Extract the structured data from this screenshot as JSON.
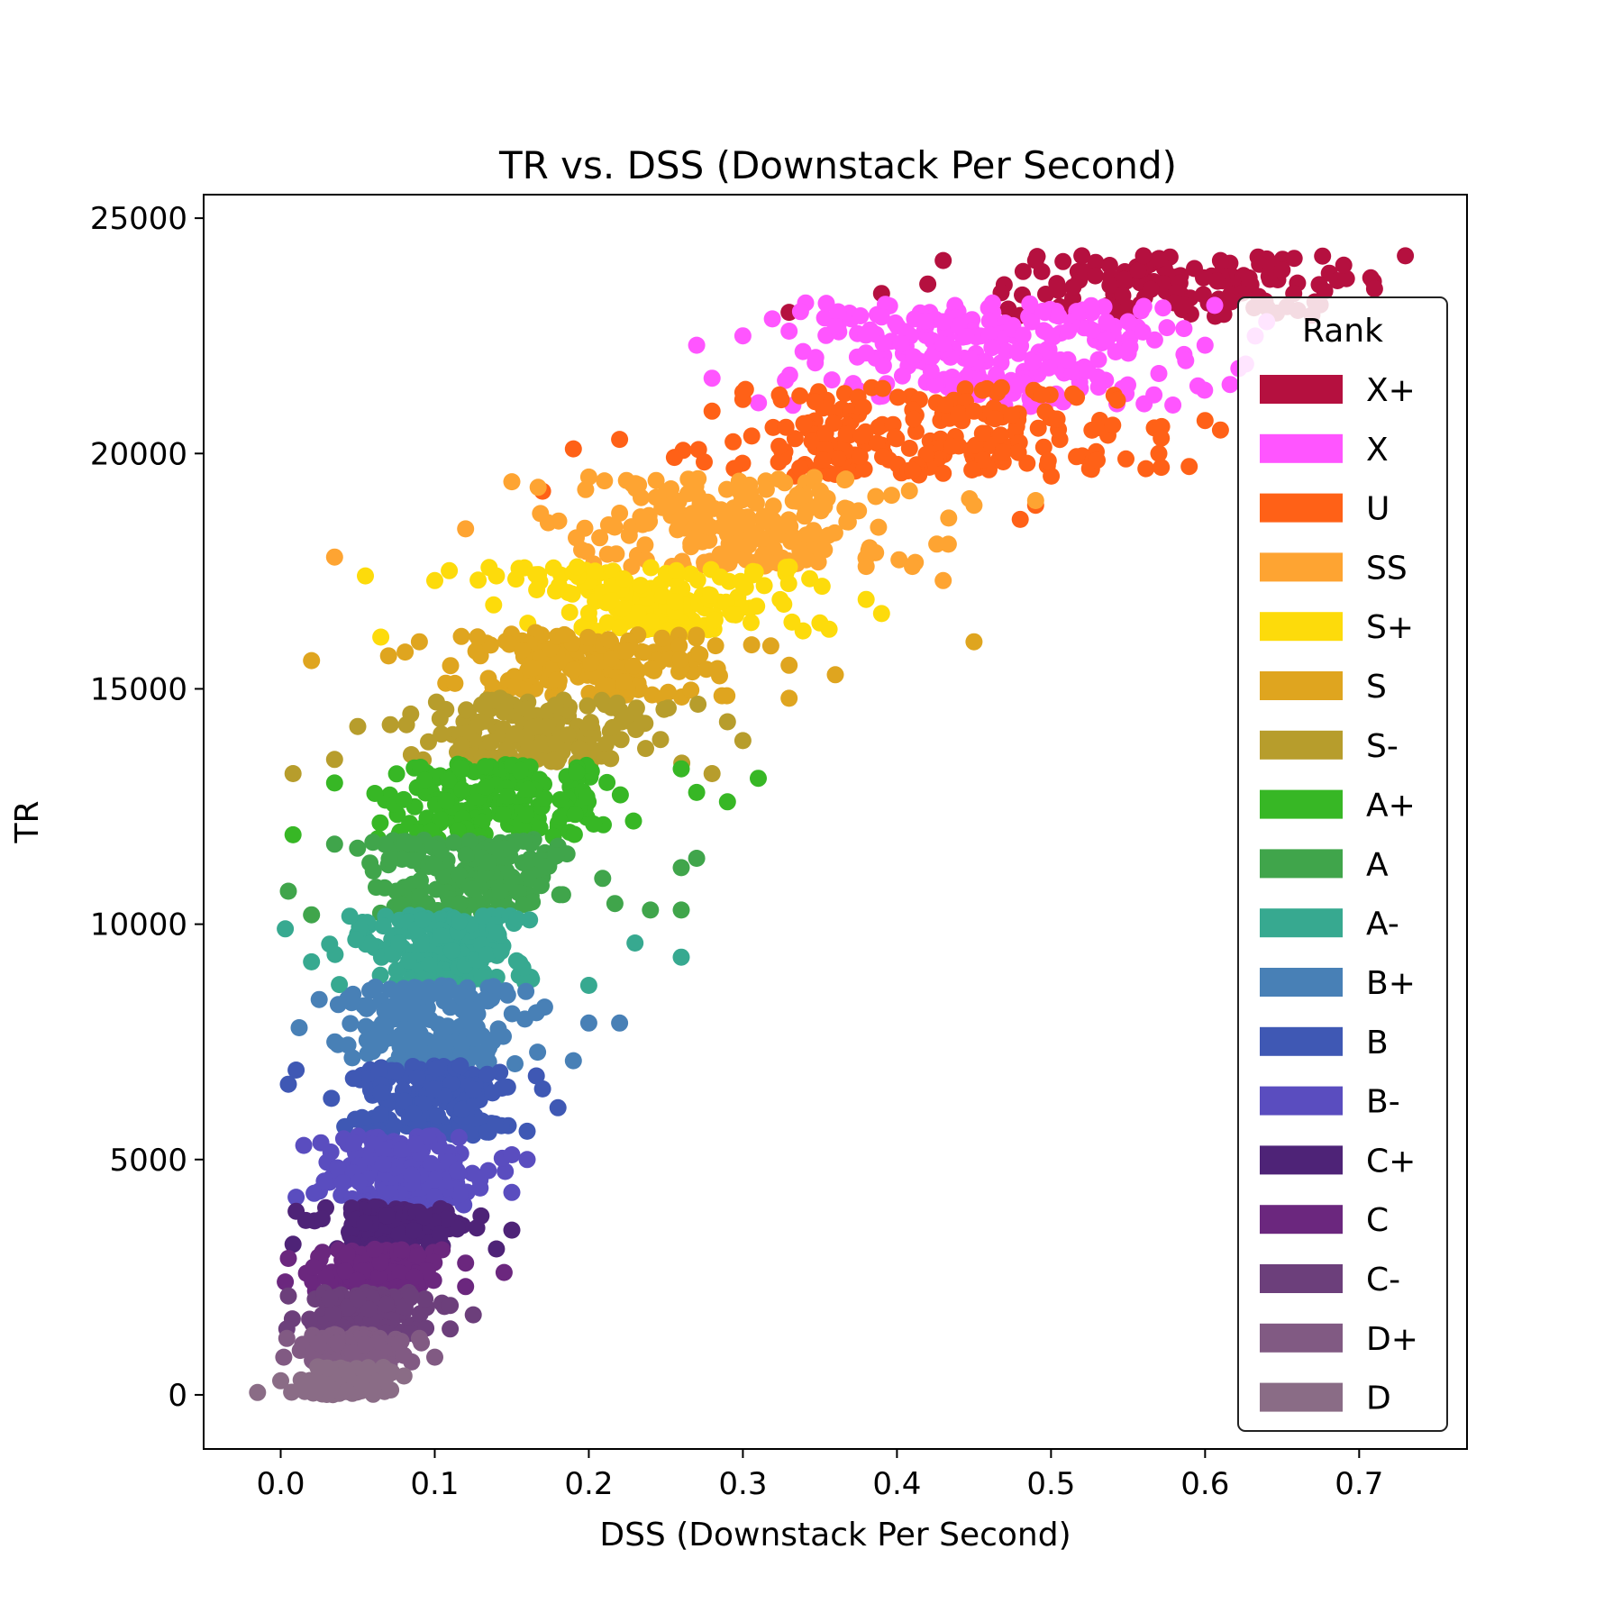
{
  "chart_data": {
    "type": "scatter",
    "title": "TR vs. DSS (Downstack Per Second)",
    "xlabel": "DSS (Downstack Per Second)",
    "ylabel": "TR",
    "xlim": [
      -0.05,
      0.77
    ],
    "ylim": [
      -1150,
      25500
    ],
    "xticks": [
      0.0,
      0.1,
      0.2,
      0.3,
      0.4,
      0.5,
      0.6,
      0.7
    ],
    "xtick_labels": [
      "0.0",
      "0.1",
      "0.2",
      "0.3",
      "0.4",
      "0.5",
      "0.6",
      "0.7"
    ],
    "yticks": [
      0,
      5000,
      10000,
      15000,
      20000,
      25000
    ],
    "ytick_labels": [
      "0",
      "5000",
      "10000",
      "15000",
      "20000",
      "25000"
    ],
    "grid": false,
    "legend": {
      "title": "Rank",
      "placement": "right"
    },
    "series": [
      {
        "name": "X+",
        "color": "#b5103f",
        "tr_range": [
          22900,
          24200
        ],
        "dss_range": [
          0.44,
          0.73
        ],
        "samples": [
          [
            0.33,
            23000
          ],
          [
            0.39,
            23400
          ],
          [
            0.43,
            24100
          ],
          [
            0.42,
            23600
          ],
          [
            0.49,
            24100
          ],
          [
            0.52,
            24200
          ],
          [
            0.56,
            24200
          ],
          [
            0.61,
            24100
          ],
          [
            0.65,
            23900
          ],
          [
            0.69,
            24000
          ],
          [
            0.73,
            24200
          ],
          [
            0.71,
            23500
          ],
          [
            0.58,
            23200
          ]
        ]
      },
      {
        "name": "X",
        "color": "#ff55ff",
        "tr_range": [
          21000,
          23200
        ],
        "dss_range": [
          0.27,
          0.66
        ],
        "samples": [
          [
            0.27,
            22300
          ],
          [
            0.28,
            21600
          ],
          [
            0.3,
            22500
          ],
          [
            0.33,
            22600
          ],
          [
            0.36,
            22700
          ],
          [
            0.39,
            22900
          ],
          [
            0.43,
            22800
          ],
          [
            0.5,
            22500
          ],
          [
            0.55,
            22800
          ],
          [
            0.6,
            22300
          ],
          [
            0.64,
            22800
          ],
          [
            0.57,
            21700
          ]
        ]
      },
      {
        "name": "U",
        "color": "#ff6117",
        "tr_range": [
          19500,
          21400
        ],
        "dss_range": [
          0.19,
          0.64
        ],
        "samples": [
          [
            0.19,
            20100
          ],
          [
            0.22,
            20300
          ],
          [
            0.28,
            20900
          ],
          [
            0.3,
            21300
          ],
          [
            0.45,
            20900
          ],
          [
            0.54,
            20600
          ],
          [
            0.57,
            20000
          ],
          [
            0.6,
            20700
          ],
          [
            0.61,
            20500
          ],
          [
            0.49,
            18900
          ],
          [
            0.48,
            18600
          ],
          [
            0.17,
            19200
          ]
        ]
      },
      {
        "name": "SS",
        "color": "#fea432",
        "tr_range": [
          17600,
          19500
        ],
        "dss_range": [
          0.14,
          0.46
        ],
        "samples": [
          [
            0.035,
            17800
          ],
          [
            0.12,
            18400
          ],
          [
            0.15,
            19400
          ],
          [
            0.2,
            19500
          ],
          [
            0.45,
            18900
          ],
          [
            0.49,
            19000
          ],
          [
            0.41,
            17600
          ],
          [
            0.43,
            17300
          ],
          [
            0.38,
            17600
          ]
        ]
      },
      {
        "name": "S+",
        "color": "#fddb0b",
        "tr_range": [
          16200,
          17600
        ],
        "dss_range": [
          0.1,
          0.39
        ],
        "samples": [
          [
            0.055,
            17400
          ],
          [
            0.065,
            16100
          ],
          [
            0.1,
            17300
          ],
          [
            0.14,
            17400
          ],
          [
            0.38,
            16900
          ],
          [
            0.35,
            16400
          ],
          [
            0.39,
            16600
          ]
        ]
      },
      {
        "name": "S",
        "color": "#dfa51f",
        "tr_range": [
          14800,
          16200
        ],
        "dss_range": [
          0.07,
          0.33
        ],
        "samples": [
          [
            0.02,
            15600
          ],
          [
            0.07,
            15700
          ],
          [
            0.09,
            16000
          ],
          [
            0.33,
            15500
          ],
          [
            0.36,
            15300
          ],
          [
            0.45,
            16000
          ],
          [
            0.33,
            14800
          ]
        ]
      },
      {
        "name": "S-",
        "color": "#b79d2c",
        "tr_range": [
          13400,
          14800
        ],
        "dss_range": [
          0.05,
          0.29
        ],
        "samples": [
          [
            0.008,
            13200
          ],
          [
            0.035,
            13500
          ],
          [
            0.05,
            14200
          ],
          [
            0.29,
            14300
          ],
          [
            0.3,
            13900
          ],
          [
            0.28,
            13200
          ]
        ]
      },
      {
        "name": "A+",
        "color": "#37b725",
        "tr_range": [
          11800,
          13400
        ],
        "dss_range": [
          0.035,
          0.25
        ],
        "samples": [
          [
            0.008,
            11900
          ],
          [
            0.035,
            13000
          ],
          [
            0.26,
            13300
          ],
          [
            0.31,
            13100
          ],
          [
            0.29,
            12600
          ],
          [
            0.27,
            12800
          ]
        ]
      },
      {
        "name": "A",
        "color": "#40a54b",
        "tr_range": [
          10200,
          11800
        ],
        "dss_range": [
          0.025,
          0.22
        ],
        "samples": [
          [
            0.005,
            10700
          ],
          [
            0.02,
            10200
          ],
          [
            0.035,
            11700
          ],
          [
            0.26,
            10300
          ],
          [
            0.27,
            11400
          ],
          [
            0.26,
            11200
          ],
          [
            0.24,
            10300
          ]
        ]
      },
      {
        "name": "A-",
        "color": "#37a990",
        "tr_range": [
          8700,
          10200
        ],
        "dss_range": [
          0.02,
          0.2
        ],
        "samples": [
          [
            0.003,
            9900
          ],
          [
            0.02,
            9200
          ],
          [
            0.23,
            9600
          ],
          [
            0.26,
            9300
          ],
          [
            0.2,
            8700
          ]
        ]
      },
      {
        "name": "B+",
        "color": "#4880b6",
        "tr_range": [
          7000,
          8700
        ],
        "dss_range": [
          0.02,
          0.18
        ],
        "samples": [
          [
            0.012,
            7800
          ],
          [
            0.025,
            8400
          ],
          [
            0.2,
            7900
          ],
          [
            0.22,
            7900
          ],
          [
            0.19,
            7100
          ]
        ]
      },
      {
        "name": "B",
        "color": "#3f58b4",
        "tr_range": [
          5500,
          7000
        ],
        "dss_range": [
          0.015,
          0.17
        ],
        "samples": [
          [
            0.005,
            6600
          ],
          [
            0.01,
            6900
          ],
          [
            0.18,
            6100
          ],
          [
            0.17,
            6500
          ],
          [
            0.16,
            5600
          ]
        ]
      },
      {
        "name": "B-",
        "color": "#5a4dbf",
        "tr_range": [
          4000,
          5500
        ],
        "dss_range": [
          0.01,
          0.15
        ],
        "samples": [
          [
            0.01,
            4200
          ],
          [
            0.015,
            5300
          ],
          [
            0.15,
            5100
          ],
          [
            0.16,
            5000
          ],
          [
            0.15,
            4300
          ]
        ]
      },
      {
        "name": "C+",
        "color": "#4e2377",
        "tr_range": [
          3100,
          4000
        ],
        "dss_range": [
          0.008,
          0.14
        ],
        "samples": [
          [
            0.008,
            3200
          ],
          [
            0.01,
            3900
          ],
          [
            0.13,
            3800
          ],
          [
            0.15,
            3500
          ],
          [
            0.14,
            3100
          ]
        ]
      },
      {
        "name": "C",
        "color": "#6b277e",
        "tr_range": [
          2200,
          3100
        ],
        "dss_range": [
          0.005,
          0.12
        ],
        "samples": [
          [
            0.003,
            2400
          ],
          [
            0.005,
            2900
          ],
          [
            0.12,
            2800
          ],
          [
            0.145,
            2600
          ],
          [
            0.12,
            2300
          ]
        ]
      },
      {
        "name": "C-",
        "color": "#6c3f7b",
        "tr_range": [
          1300,
          2200
        ],
        "dss_range": [
          0.004,
          0.11
        ],
        "samples": [
          [
            0.004,
            1400
          ],
          [
            0.005,
            2100
          ],
          [
            0.11,
            1900
          ],
          [
            0.125,
            1700
          ],
          [
            0.11,
            1400
          ]
        ]
      },
      {
        "name": "D+",
        "color": "#815a83",
        "tr_range": [
          600,
          1300
        ],
        "dss_range": [
          0.002,
          0.09
        ],
        "samples": [
          [
            0.002,
            800
          ],
          [
            0.004,
            1200
          ],
          [
            0.09,
            1200
          ],
          [
            0.1,
            800
          ],
          [
            0.085,
            700
          ]
        ]
      },
      {
        "name": "D",
        "color": "#8a6c86",
        "tr_range": [
          0,
          600
        ],
        "dss_range": [
          0.0,
          0.08
        ],
        "samples": [
          [
            -0.015,
            50
          ],
          [
            0.0,
            300
          ],
          [
            0.07,
            500
          ],
          [
            0.08,
            400
          ],
          [
            0.06,
            100
          ]
        ]
      }
    ]
  }
}
